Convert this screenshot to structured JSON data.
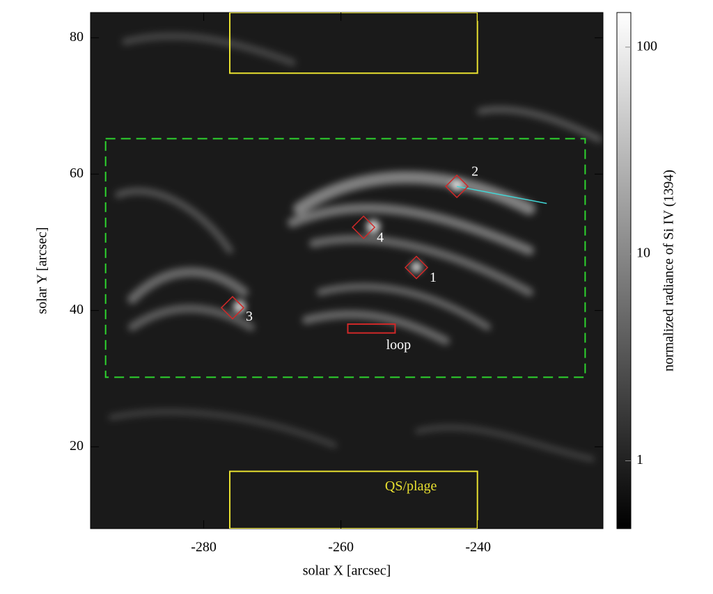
{
  "chart_data": {
    "type": "image",
    "xlabel": "solar  X  [arcsec]",
    "ylabel": "solar  Y  [arcsec]",
    "xlim": [
      -296.5,
      -221.8
    ],
    "ylim": [
      8.0,
      83.7
    ],
    "xticks": [
      -280,
      -260,
      -240
    ],
    "yticks": [
      20,
      40,
      60,
      80
    ],
    "colorbar": {
      "label": "normalized radiance of Si IV (1394)",
      "log": true,
      "lim": [
        0.47,
        147
      ],
      "ticks": [
        1,
        10,
        100
      ]
    },
    "regions": [
      {
        "x": [
          -276.2,
          -240.1
        ],
        "y": [
          74.8,
          83.7
        ],
        "color": "#e8e030",
        "dashed": false
      },
      {
        "x": [
          -276.2,
          -240.1
        ],
        "y": [
          8.0,
          16.4
        ],
        "color": "#e8e030",
        "dashed": false
      },
      {
        "x": [
          -294.3,
          -224.4
        ],
        "y": [
          30.2,
          65.2
        ],
        "color": "#2ed42e",
        "dashed": true
      },
      {
        "x": [
          -259.0,
          -252.1
        ],
        "y": [
          36.7,
          38.0
        ],
        "color": "#d02828",
        "dashed": false
      }
    ],
    "markers": [
      {
        "label": "1",
        "x": -249.0,
        "y": 46.3,
        "color": "#d02828"
      },
      {
        "label": "2",
        "x": -243.1,
        "y": 58.2,
        "color": "#d02828"
      },
      {
        "label": "3",
        "x": -275.8,
        "y": 40.4,
        "color": "#d02828"
      },
      {
        "label": "4",
        "x": -256.7,
        "y": 52.2,
        "color": "#d02828"
      }
    ],
    "lines": [
      {
        "x": [
          -243.1,
          -230.0
        ],
        "y": [
          58.2,
          55.7
        ],
        "color": "#40d8d8"
      }
    ],
    "annotations": [
      {
        "text": "loop",
        "x": -251.6,
        "y": 34.8,
        "color": "#ffffff"
      },
      {
        "text": "QS/plage",
        "x": -249.8,
        "y": 14.1,
        "color": "#e8e030"
      }
    ]
  }
}
